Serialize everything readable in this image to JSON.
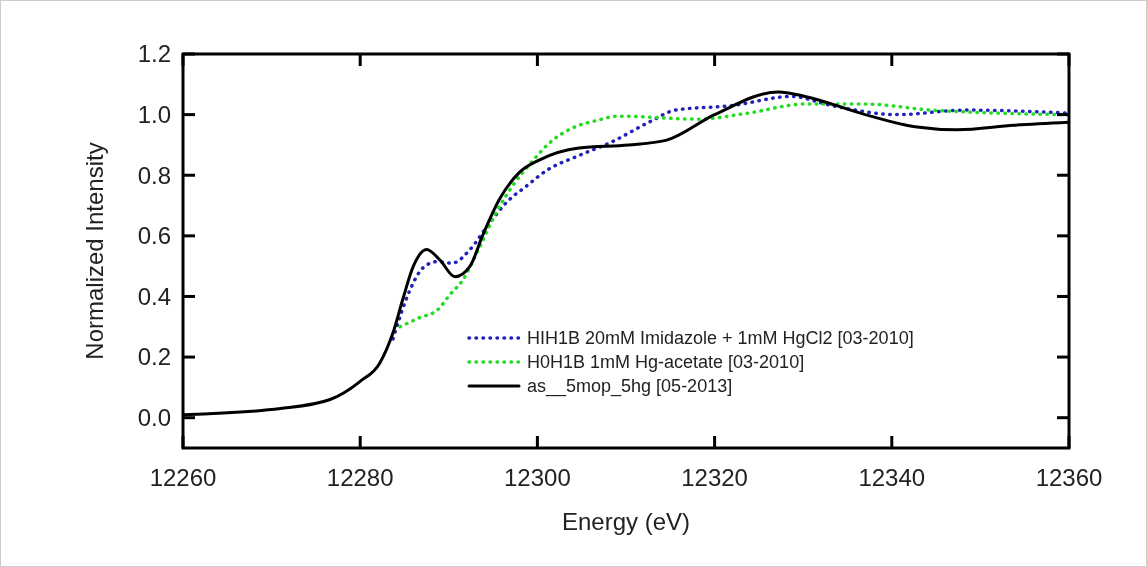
{
  "chart_data": {
    "type": "line",
    "xlabel": "Energy (eV)",
    "ylabel": "Normalized Intensity",
    "xlim": [
      12260,
      12360
    ],
    "xticks": [
      12260,
      12280,
      12300,
      12320,
      12340,
      12360
    ],
    "ylim": [
      -0.1,
      1.2
    ],
    "yticks": [
      {
        "value": 0,
        "label": "0.0"
      },
      0.2,
      0.4,
      0.6,
      0.8,
      {
        "value": 1,
        "label": "1.0"
      },
      1.2
    ],
    "grid": false,
    "legend": "bottom right",
    "marker": "none",
    "series": [
      {
        "name": "HIH1B 20mM Imidazole + 1mM HgCl2 [03-2010]",
        "color": "#2222bb",
        "line_style": "dotted",
        "x": [
          12283.7,
          12285.6,
          12287.1,
          12288.7,
          12290.4,
          12292.4,
          12294.3,
          12296.5,
          12298.8,
          12301,
          12304.7,
          12308.4,
          12312.6,
          12315.6,
          12322,
          12328.7,
          12333.2,
          12340.7,
          12348.2,
          12360
        ],
        "values": [
          0.26,
          0.42,
          0.495,
          0.515,
          0.51,
          0.555,
          0.63,
          0.71,
          0.765,
          0.815,
          0.865,
          0.91,
          0.975,
          1.015,
          1.03,
          1.06,
          1.03,
          1.0,
          1.015,
          1.005
        ]
      },
      {
        "name": "H0H1B 1mM Hg-acetate [03-2010]",
        "color": "#22dd22",
        "line_style": "dotted",
        "x": [
          12284.5,
          12286.7,
          12288.7,
          12290.1,
          12291.6,
          12293.5,
          12295.4,
          12297.2,
          12299.4,
          12301.3,
          12303.9,
          12306.6,
          12309.2,
          12318.2,
          12323.8,
          12330.2,
          12337,
          12344.4,
          12351.9,
          12360
        ],
        "values": [
          0.3,
          0.33,
          0.355,
          0.405,
          0.455,
          0.565,
          0.68,
          0.765,
          0.845,
          0.905,
          0.955,
          0.98,
          0.995,
          0.985,
          1.005,
          1.035,
          1.035,
          1.015,
          1.005,
          1.0
        ]
      },
      {
        "name": "as__5mop_5hg [05-2013]",
        "color": "#000000",
        "line_style": "solid",
        "x": [
          12260,
          12271,
          12276.6,
          12280,
          12282.2,
          12283.7,
          12284.8,
          12286,
          12287.5,
          12289,
          12290.7,
          12292.4,
          12293.8,
          12295.7,
          12298,
          12300.2,
          12304.7,
          12310.3,
          12314.5,
          12320,
          12327.2,
          12330.2,
          12337,
          12342.6,
          12347.4,
          12353.8,
          12360
        ],
        "values": [
          0.01,
          0.03,
          0.06,
          0.12,
          0.18,
          0.28,
          0.39,
          0.5,
          0.555,
          0.52,
          0.465,
          0.5,
          0.6,
          0.72,
          0.81,
          0.85,
          0.89,
          0.9,
          0.915,
          1.0,
          1.075,
          1.06,
          1.0,
          0.96,
          0.95,
          0.965,
          0.975
        ]
      }
    ]
  }
}
